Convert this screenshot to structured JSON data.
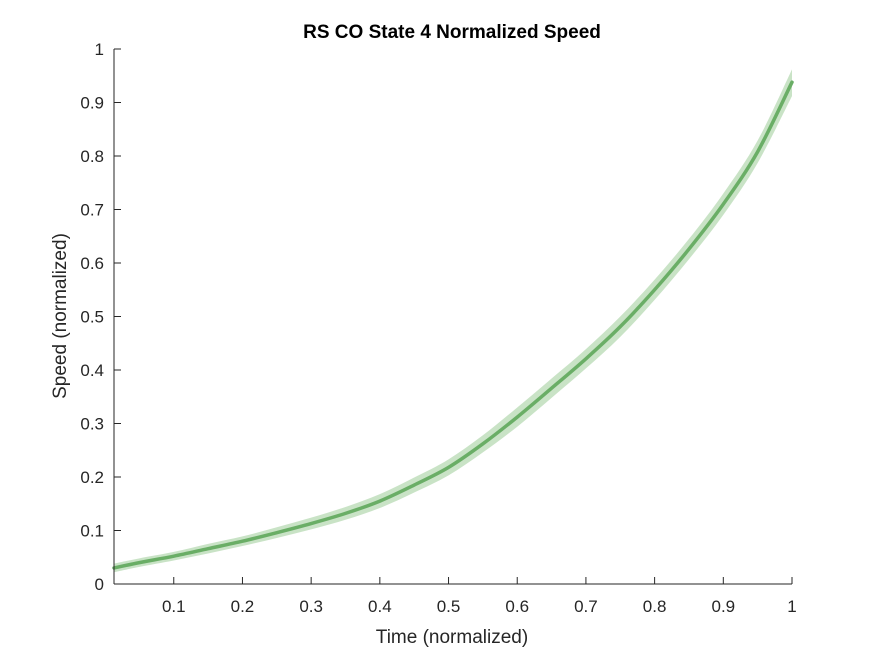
{
  "chart_data": {
    "type": "line",
    "title": "RS  CO State 4 Normalized Speed",
    "xlabel": "Time (normalized)",
    "ylabel": "Speed (normalized)",
    "xlim": [
      0.013,
      1
    ],
    "ylim": [
      0,
      1
    ],
    "x_ticks": [
      0.1,
      0.2,
      0.3,
      0.4,
      0.5,
      0.6,
      0.7,
      0.8,
      0.9,
      1
    ],
    "x_tick_labels": [
      "0.1",
      "0.2",
      "0.3",
      "0.4",
      "0.5",
      "0.6",
      "0.7",
      "0.8",
      "0.9",
      "1"
    ],
    "y_ticks": [
      0,
      0.1,
      0.2,
      0.3,
      0.4,
      0.5,
      0.6,
      0.7,
      0.8,
      0.9,
      1
    ],
    "y_tick_labels": [
      "0",
      "0.1",
      "0.2",
      "0.3",
      "0.4",
      "0.5",
      "0.6",
      "0.7",
      "0.8",
      "0.9",
      "1"
    ],
    "grid": false,
    "box": false,
    "colors": {
      "line": "#6aae66",
      "band": "#c6e2c3",
      "axis": "#262626"
    },
    "series": [
      {
        "x": [
          0.013,
          0.05,
          0.1,
          0.15,
          0.2,
          0.25,
          0.3,
          0.35,
          0.4,
          0.45,
          0.5,
          0.55,
          0.6,
          0.65,
          0.7,
          0.75,
          0.8,
          0.85,
          0.9,
          0.95,
          1.0
        ],
        "y": [
          0.03,
          0.04,
          0.052,
          0.066,
          0.08,
          0.096,
          0.113,
          0.132,
          0.155,
          0.185,
          0.218,
          0.262,
          0.312,
          0.366,
          0.421,
          0.481,
          0.55,
          0.626,
          0.71,
          0.808,
          0.938
        ],
        "lower": [
          0.022,
          0.032,
          0.044,
          0.057,
          0.071,
          0.086,
          0.102,
          0.12,
          0.142,
          0.171,
          0.203,
          0.246,
          0.294,
          0.348,
          0.403,
          0.462,
          0.531,
          0.607,
          0.69,
          0.787,
          0.912
        ],
        "upper": [
          0.038,
          0.048,
          0.06,
          0.075,
          0.089,
          0.106,
          0.124,
          0.144,
          0.168,
          0.199,
          0.233,
          0.278,
          0.33,
          0.384,
          0.439,
          0.5,
          0.569,
          0.645,
          0.73,
          0.829,
          0.962
        ]
      }
    ]
  }
}
